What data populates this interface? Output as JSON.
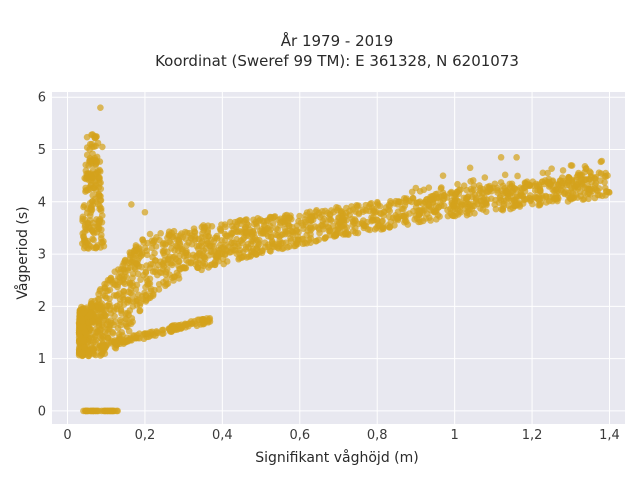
{
  "chart_data": {
    "type": "scatter",
    "title_line1": "År 1979 - 2019",
    "title_line2": "Koordinat (Sweref 99 TM): E 361328, N 6201073",
    "xlabel": "Signifikant våghöjd (m)",
    "ylabel": "Vågperiod (s)",
    "xlim": [
      -0.04,
      1.44
    ],
    "ylim": [
      -0.25,
      6.1
    ],
    "xticks": [
      0,
      0.2,
      0.4,
      0.6,
      0.8,
      1.0,
      1.2,
      1.4
    ],
    "xtick_labels": [
      "0",
      "0,2",
      "0,4",
      "0,6",
      "0,8",
      "1",
      "1,2",
      "1,4"
    ],
    "yticks": [
      0,
      1,
      2,
      3,
      4,
      5,
      6
    ],
    "ytick_labels": [
      "0",
      "1",
      "2",
      "3",
      "4",
      "5",
      "6"
    ],
    "grid": true,
    "marker_color": "#d4a21c",
    "background": "#e8e8f0",
    "point_clusters": [
      {
        "kind": "zero_line",
        "x_range": [
          0.03,
          0.13
        ],
        "y": 0
      },
      {
        "kind": "swell_column",
        "x_range": [
          0.03,
          0.11
        ],
        "y_range": [
          3.1,
          5.3
        ]
      },
      {
        "kind": "main_body",
        "x_range": [
          0.03,
          1.4
        ],
        "y_lower": [
          1.05,
          4.5
        ],
        "y_upper": [
          2.0,
          4.8
        ]
      },
      {
        "kind": "lower_branch",
        "x_range": [
          0.12,
          0.37
        ],
        "y_range": [
          1.3,
          1.8
        ]
      }
    ],
    "outlier_points": [
      {
        "x": 0.085,
        "y": 5.8
      },
      {
        "x": 0.075,
        "y": 5.25
      },
      {
        "x": 0.09,
        "y": 5.05
      },
      {
        "x": 1.38,
        "y": 4.78
      },
      {
        "x": 1.39,
        "y": 4.55
      },
      {
        "x": 1.24,
        "y": 4.55
      },
      {
        "x": 1.16,
        "y": 4.85
      },
      {
        "x": 1.12,
        "y": 4.85
      },
      {
        "x": 1.04,
        "y": 4.65
      },
      {
        "x": 0.97,
        "y": 4.5
      },
      {
        "x": 1.09,
        "y": 4.3
      },
      {
        "x": 1.07,
        "y": 4.1
      },
      {
        "x": 1.32,
        "y": 4.55
      },
      {
        "x": 1.28,
        "y": 4.6
      },
      {
        "x": 0.2,
        "y": 3.8
      },
      {
        "x": 0.165,
        "y": 3.95
      },
      {
        "x": 0.35,
        "y": 1.75
      },
      {
        "x": 0.36,
        "y": 1.77
      }
    ]
  }
}
